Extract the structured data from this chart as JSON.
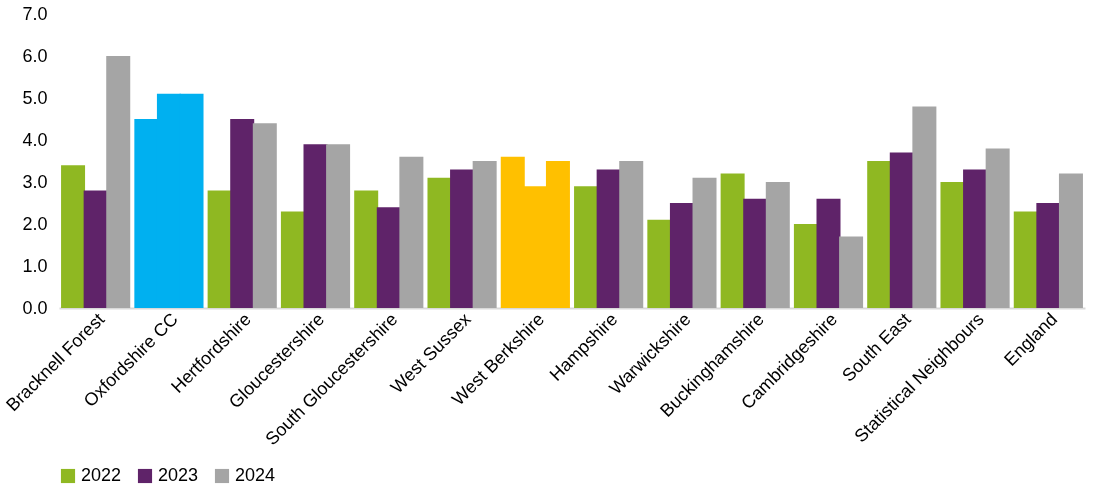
{
  "chart_data": {
    "type": "bar",
    "categories": [
      "Bracknell Forest",
      "Oxfordshire CC",
      "Hertfordshire",
      "Gloucestershire",
      "South Gloucestershire",
      "West Sussex",
      "West Berkshire",
      "Hampshire",
      "Warwickshire",
      "Buckinghamshire",
      "Cambridgeshire",
      "South East",
      "Statistical Neighbours",
      "England"
    ],
    "series": [
      {
        "name": "2022",
        "color": "#8fb822",
        "colors": [
          "#8fb822",
          "#00b0f0",
          "#8fb822",
          "#8fb822",
          "#8fb822",
          "#8fb822",
          "#ffc000",
          "#8fb822",
          "#8fb822",
          "#8fb822",
          "#8fb822",
          "#8fb822",
          "#8fb822",
          "#8fb822"
        ],
        "values": [
          3.4,
          4.5,
          2.8,
          2.3,
          2.8,
          3.1,
          3.6,
          2.9,
          2.1,
          3.2,
          2.0,
          3.5,
          3.0,
          2.3
        ]
      },
      {
        "name": "2023",
        "color": "#5f2369",
        "colors": [
          "#5f2369",
          "#00b0f0",
          "#5f2369",
          "#5f2369",
          "#5f2369",
          "#5f2369",
          "#ffc000",
          "#5f2369",
          "#5f2369",
          "#5f2369",
          "#5f2369",
          "#5f2369",
          "#5f2369",
          "#5f2369"
        ],
        "values": [
          2.8,
          5.1,
          4.5,
          3.9,
          2.4,
          3.3,
          2.9,
          3.3,
          2.5,
          2.6,
          2.6,
          3.7,
          3.3,
          2.5
        ]
      },
      {
        "name": "2024",
        "color": "#a5a5a5",
        "colors": [
          "#a5a5a5",
          "#00b0f0",
          "#a5a5a5",
          "#a5a5a5",
          "#a5a5a5",
          "#a5a5a5",
          "#ffc000",
          "#a5a5a5",
          "#a5a5a5",
          "#a5a5a5",
          "#a5a5a5",
          "#a5a5a5",
          "#a5a5a5",
          "#a5a5a5"
        ],
        "values": [
          6.0,
          5.1,
          4.4,
          3.9,
          3.6,
          3.5,
          3.5,
          3.5,
          3.1,
          3.0,
          1.7,
          4.8,
          3.8,
          3.2
        ]
      }
    ],
    "ylim": [
      0,
      7
    ],
    "yticks": [
      {
        "value": 0,
        "label": "0.0"
      },
      {
        "value": 1,
        "label": "1.0"
      },
      {
        "value": 2,
        "label": "2.0"
      },
      {
        "value": 3,
        "label": "3.0"
      },
      {
        "value": 4,
        "label": "4.0"
      },
      {
        "value": 5,
        "label": "5.0"
      },
      {
        "value": 6,
        "label": "6.0"
      },
      {
        "value": 7,
        "label": "7.0"
      }
    ],
    "grid": false,
    "legend": "bottom"
  }
}
